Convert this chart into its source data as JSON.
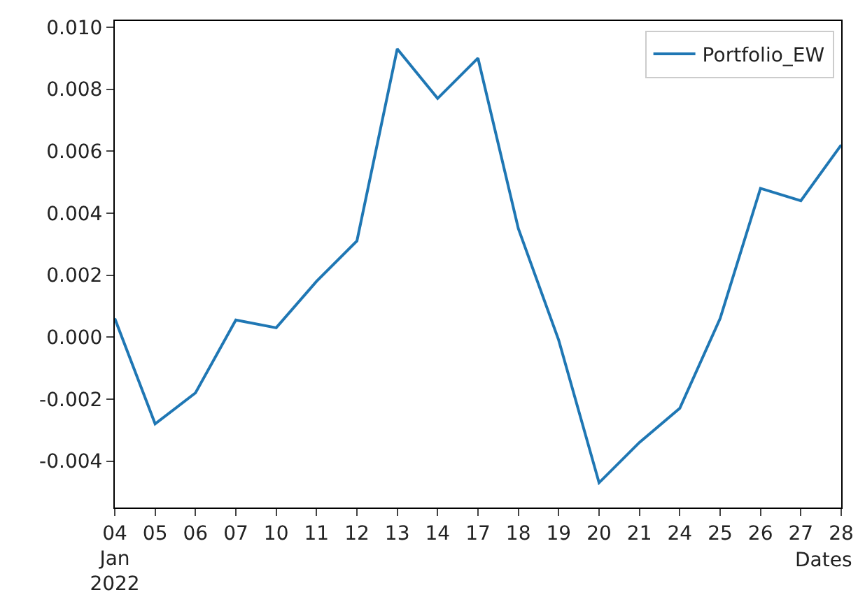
{
  "chart_data": {
    "type": "line",
    "xlabel": "Dates",
    "categories": [
      "04\nJan\n2022",
      "05",
      "06",
      "07",
      "10",
      "11",
      "12",
      "13",
      "14",
      "17",
      "18",
      "19",
      "20",
      "21",
      "24",
      "25",
      "26",
      "27",
      "28"
    ],
    "series": [
      {
        "name": "Portfolio_EW",
        "color": "#1f77b4",
        "values": [
          0.0006,
          -0.0028,
          -0.0018,
          0.00055,
          0.0003,
          0.0018,
          0.0031,
          0.0093,
          0.0077,
          0.009,
          0.0035,
          -0.0001,
          -0.0047,
          -0.0034,
          -0.0023,
          0.0006,
          0.0048,
          0.0044,
          0.0062
        ]
      }
    ],
    "ylim": [
      -0.0055,
      0.0102
    ],
    "yticks": [
      {
        "value": -0.004,
        "label": "-0.004"
      },
      {
        "value": -0.002,
        "label": "-0.002"
      },
      {
        "value": 0,
        "label": "0.000"
      },
      {
        "value": 0.002,
        "label": "0.002"
      },
      {
        "value": 0.004,
        "label": "0.004"
      },
      {
        "value": 0.006,
        "label": "0.006"
      },
      {
        "value": 0.008,
        "label": "0.008"
      },
      {
        "value": 0.01,
        "label": "0.010"
      }
    ],
    "grid": false,
    "legend": "top right",
    "marker": "none",
    "line_style": "solid"
  }
}
